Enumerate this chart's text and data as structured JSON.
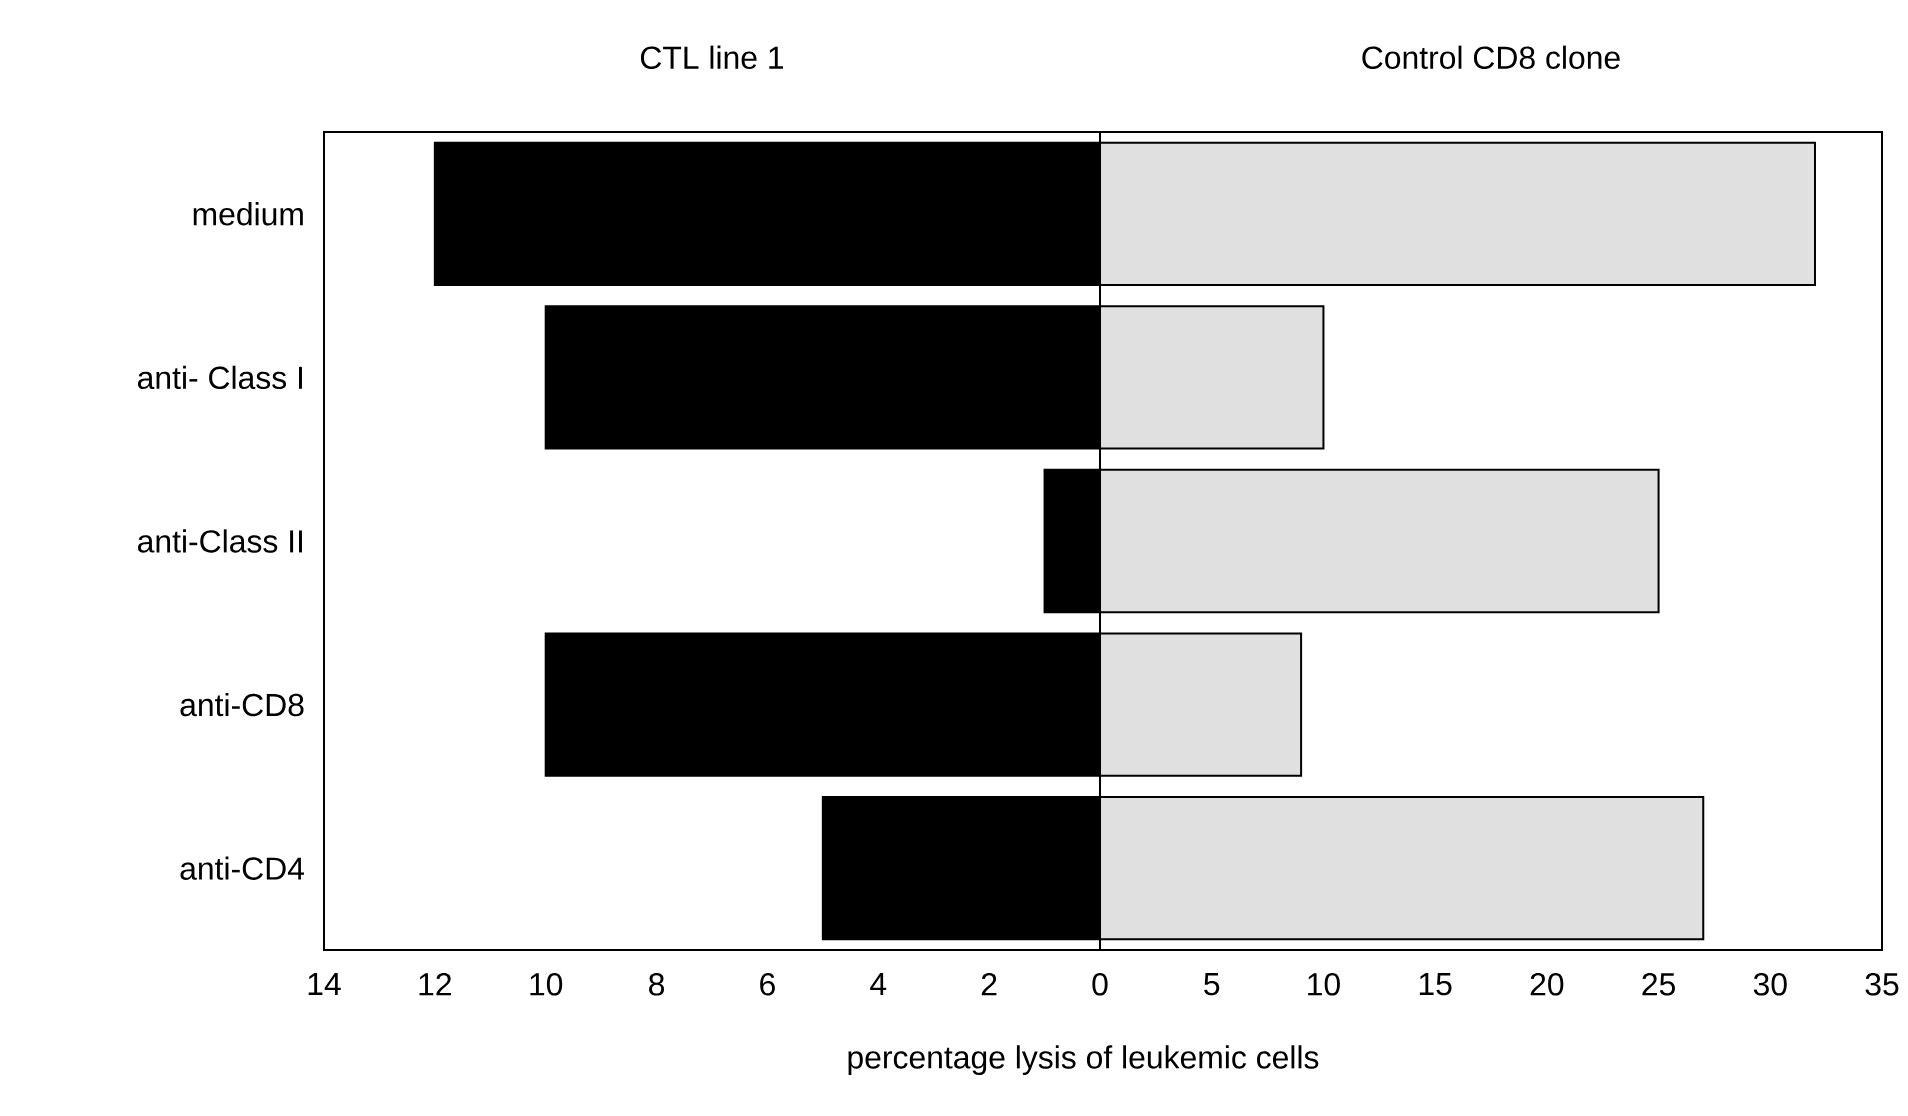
{
  "chart_data": [
    {
      "type": "bar",
      "orientation": "horizontal",
      "title": "CTL line 1",
      "xlabel": "percentage lysis of leukemic cells",
      "categories": [
        "medium",
        "anti- Class I",
        "anti-Class II",
        "anti-CD8",
        "anti-CD4"
      ],
      "values": [
        12,
        10,
        1,
        10,
        5
      ],
      "color": "#000000",
      "xlim": [
        14,
        0
      ],
      "xticks": [
        14,
        12,
        10,
        8,
        6,
        4,
        2
      ]
    },
    {
      "type": "bar",
      "orientation": "horizontal",
      "title": "Control CD8 clone",
      "values": [
        32,
        10,
        25,
        9,
        27
      ],
      "color": "#e0e0e0",
      "xlim": [
        0,
        35
      ],
      "xticks": [
        0,
        5,
        10,
        15,
        20,
        25,
        30,
        35
      ],
      "tick_labels": "x"
    }
  ]
}
